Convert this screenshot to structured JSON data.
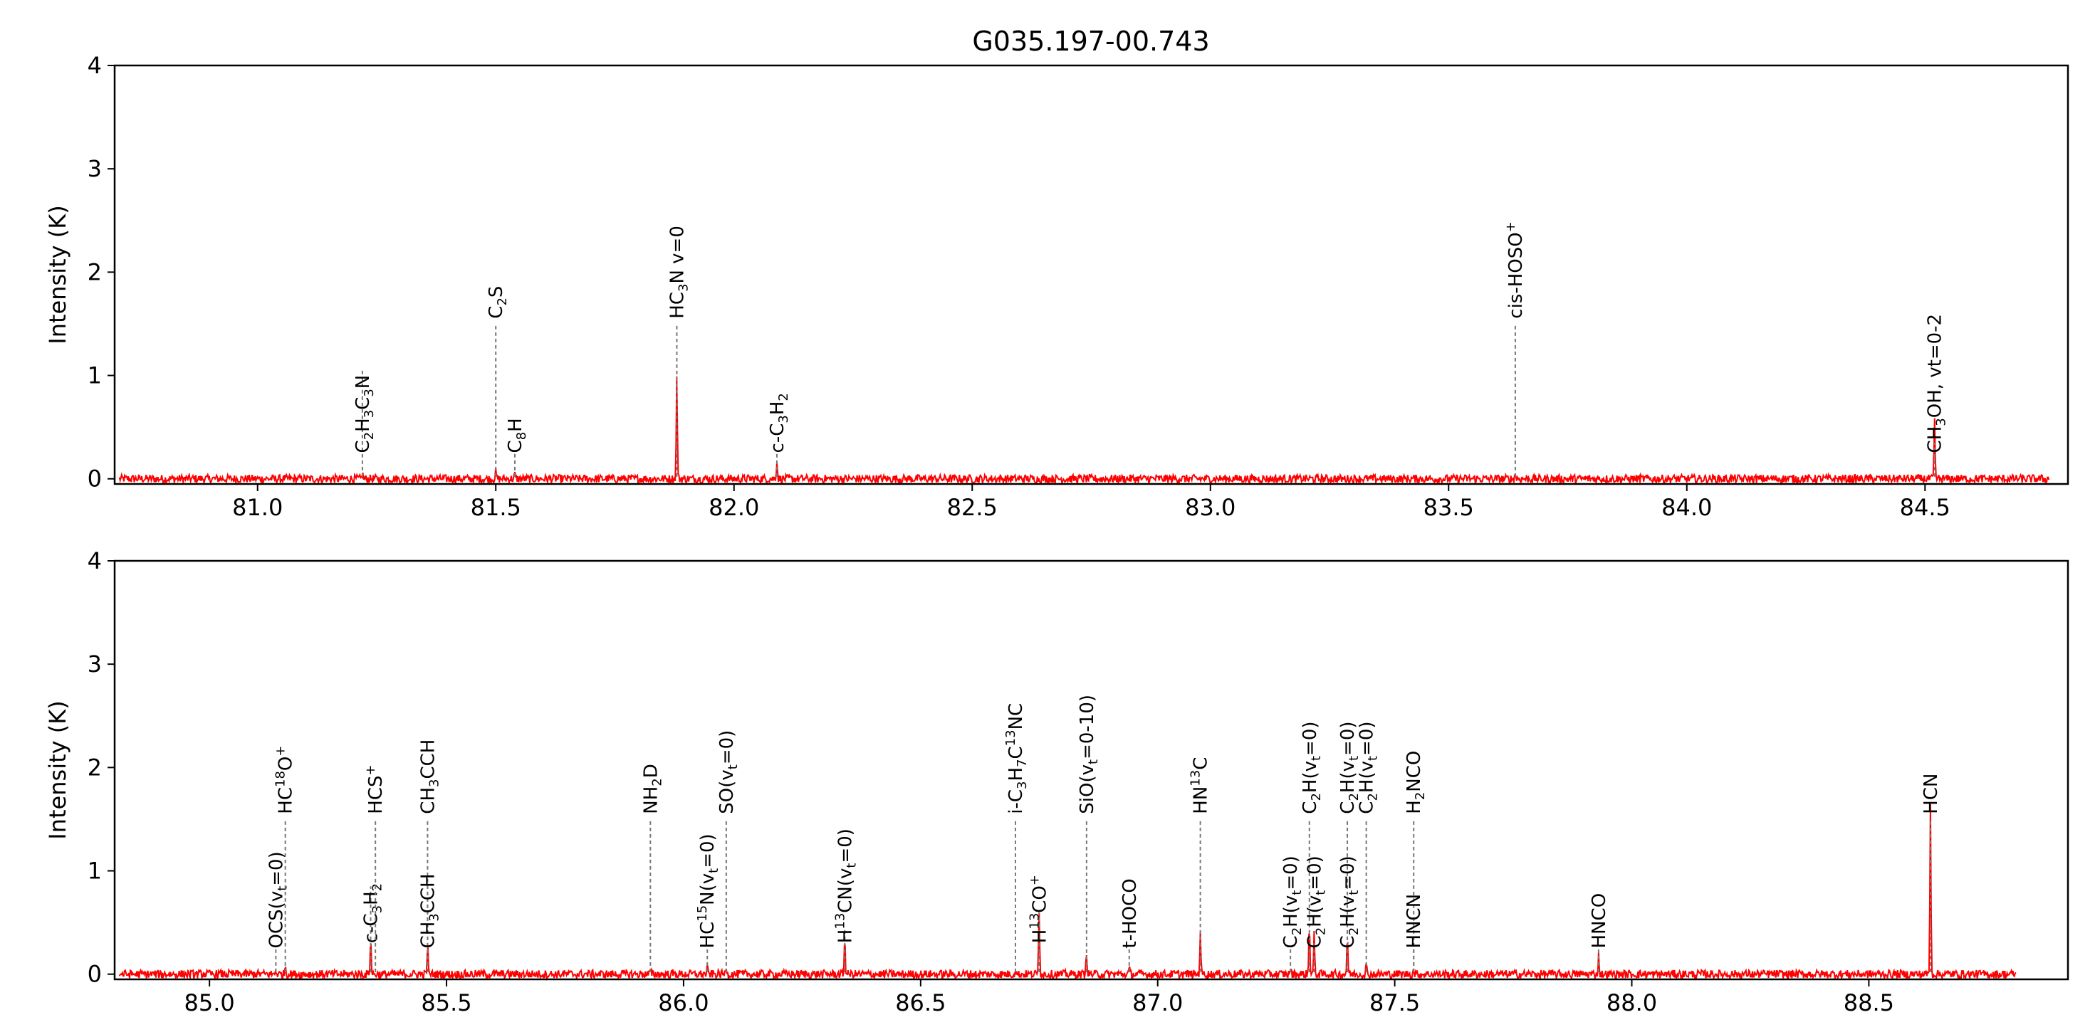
{
  "chart_data": {
    "type": "line",
    "title": "G035.197-00.743",
    "panels": [
      {
        "ylabel": "Intensity (K)",
        "xlim": [
          80.7,
          84.8
        ],
        "ylim": [
          -0.05,
          4
        ],
        "xticks": [
          "81.0",
          "81.5",
          "82.0",
          "82.5",
          "83.0",
          "83.5",
          "84.0",
          "84.5"
        ],
        "xtick_values": [
          81.0,
          81.5,
          82.0,
          82.5,
          83.0,
          83.5,
          84.0,
          84.5
        ],
        "yticks": [
          "0",
          "1",
          "2",
          "3",
          "4"
        ],
        "ytick_values": [
          0,
          1,
          2,
          3,
          4
        ],
        "spectrum_range": [
          80.71,
          84.76
        ],
        "peaks": [
          {
            "x": 81.22,
            "h": 0.05
          },
          {
            "x": 81.5,
            "h": 0.07
          },
          {
            "x": 81.54,
            "h": 0.04
          },
          {
            "x": 81.88,
            "h": 0.98
          },
          {
            "x": 82.09,
            "h": 0.18
          },
          {
            "x": 83.64,
            "h": 0.05
          },
          {
            "x": 84.52,
            "h": 0.55
          }
        ],
        "lines": [
          {
            "x": 81.22,
            "label": "C2H3C3N",
            "html": "C<tspan class='sub' dy='6'>2</tspan><tspan dy='-6'>H</tspan><tspan class='sub' dy='6'>3</tspan><tspan dy='-6'>C</tspan><tspan class='sub' dy='6'>3</tspan><tspan dy='-6'>N</tspan>",
            "top": 1.05,
            "text_y": 0.25
          },
          {
            "x": 81.5,
            "label": "C2S",
            "html": "C<tspan class='sub' dy='6'>2</tspan><tspan dy='-6'>S</tspan>",
            "top": 1.5,
            "text_y": 1.55
          },
          {
            "x": 81.54,
            "label": "C8H",
            "html": "C<tspan class='sub' dy='6'>8</tspan><tspan dy='-6'>H</tspan>",
            "top": 0.25,
            "text_y": 0.25
          },
          {
            "x": 81.88,
            "label": "HC3N v=0",
            "html": "HC<tspan class='sub' dy='6'>3</tspan><tspan dy='-6'>N v=0</tspan>",
            "top": 1.5,
            "text_y": 1.55
          },
          {
            "x": 82.09,
            "label": "c-C3H2",
            "html": "c-C<tspan class='sub' dy='6'>3</tspan><tspan dy='-6'>H</tspan><tspan class='sub' dy='6'>2</tspan>",
            "top": 0.25,
            "text_y": 0.25
          },
          {
            "x": 83.64,
            "label": "cis-HOSO+",
            "html": "cis-HOSO<tspan class='sup' dy='-10'>+</tspan>",
            "top": 1.5,
            "text_y": 1.55
          },
          {
            "x": 84.52,
            "label": "CH3OH, vt=0-2",
            "html": "CH<tspan class='sub' dy='6'>3</tspan><tspan dy='-6'>OH, vt=0-2</tspan>",
            "top": 0.35,
            "text_y": 0.25
          }
        ]
      },
      {
        "ylabel": "Intensity (K)",
        "xlim": [
          84.8,
          88.92
        ],
        "ylim": [
          -0.05,
          4
        ],
        "xticks": [
          "85.0",
          "85.5",
          "86.0",
          "86.5",
          "87.0",
          "87.5",
          "88.0",
          "88.5"
        ],
        "xtick_values": [
          85.0,
          85.5,
          86.0,
          86.5,
          87.0,
          87.5,
          88.0,
          88.5
        ],
        "yticks": [
          "0",
          "1",
          "2",
          "3",
          "4"
        ],
        "ytick_values": [
          0,
          1,
          2,
          3,
          4
        ],
        "spectrum_range": [
          84.81,
          88.81
        ],
        "peaks": [
          {
            "x": 85.14,
            "h": 0.04
          },
          {
            "x": 85.16,
            "h": 0.08
          },
          {
            "x": 85.34,
            "h": 0.35
          },
          {
            "x": 85.46,
            "h": 0.28
          },
          {
            "x": 85.93,
            "h": 0.03
          },
          {
            "x": 86.05,
            "h": 0.06
          },
          {
            "x": 86.09,
            "h": 0.08
          },
          {
            "x": 86.34,
            "h": 0.35
          },
          {
            "x": 86.7,
            "h": 0.04
          },
          {
            "x": 86.75,
            "h": 0.62
          },
          {
            "x": 86.85,
            "h": 0.22
          },
          {
            "x": 86.94,
            "h": 0.05
          },
          {
            "x": 87.09,
            "h": 0.42
          },
          {
            "x": 87.28,
            "h": 0.06
          },
          {
            "x": 87.32,
            "h": 0.5
          },
          {
            "x": 87.33,
            "h": 0.38
          },
          {
            "x": 87.4,
            "h": 0.38
          },
          {
            "x": 87.44,
            "h": 0.08
          },
          {
            "x": 87.54,
            "h": 0.04
          },
          {
            "x": 87.93,
            "h": 0.18
          },
          {
            "x": 88.63,
            "h": 1.62
          }
        ],
        "lines": [
          {
            "x": 85.14,
            "label": "OCS(vt=0)",
            "html": "OCS(v<tspan class='sub' dy='6'>t</tspan><tspan dy='-6'>=0)</tspan>",
            "top": 0.25,
            "text_y": 0.25
          },
          {
            "x": 85.16,
            "label": "HC18O+",
            "html": "HC<tspan class='sup' dy='-10'>18</tspan><tspan dy='10'>O</tspan><tspan class='sup' dy='-10'>+</tspan>",
            "top": 1.5,
            "text_y": 1.55
          },
          {
            "x": 85.34,
            "label": "c-C3H2",
            "html": "c-C<tspan class='sub' dy='6'>3</tspan><tspan dy='-6'>H</tspan><tspan class='sub' dy='6'>2</tspan>",
            "top": 0.85,
            "text_y": 0.3
          },
          {
            "x": 85.35,
            "label": "HCS+",
            "html": "HCS<tspan class='sup' dy='-10'>+</tspan>",
            "top": 1.5,
            "text_y": 1.55
          },
          {
            "x": 85.46,
            "label": "CH3CCH",
            "html": "CH<tspan class='sub' dy='6'>3</tspan><tspan dy='-6'>CCH</tspan>",
            "top": 1.5,
            "text_y": 1.55
          },
          {
            "x": 85.46,
            "label": "CH3CCH",
            "html": "CH<tspan class='sub' dy='6'>3</tspan><tspan dy='-6'>CCH</tspan>",
            "top": 0.85,
            "text_y": 0.25
          },
          {
            "x": 85.93,
            "label": "NH2D",
            "html": "NH<tspan class='sub' dy='6'>2</tspan><tspan dy='-6'>D</tspan>",
            "top": 1.5,
            "text_y": 1.55
          },
          {
            "x": 86.05,
            "label": "HC15N(vt=0)",
            "html": "HC<tspan class='sup' dy='-10'>15</tspan><tspan dy='10'>N(v</tspan><tspan class='sub' dy='6'>t</tspan><tspan dy='-6'>=0)</tspan>",
            "top": 0.25,
            "text_y": 0.25
          },
          {
            "x": 86.09,
            "label": "SO(vt=0)",
            "html": "SO(v<tspan class='sub' dy='6'>t</tspan><tspan dy='-6'>=0)</tspan>",
            "top": 1.5,
            "text_y": 1.55
          },
          {
            "x": 86.34,
            "label": "H13CN(vt=0)",
            "html": "H<tspan class='sup' dy='-10'>13</tspan><tspan dy='10'>CN(v</tspan><tspan class='sub' dy='6'>t</tspan><tspan dy='-6'>=0)</tspan>",
            "top": 0.45,
            "text_y": 0.3
          },
          {
            "x": 86.7,
            "label": "i-C3H7C13NC",
            "html": "i-C<tspan class='sub' dy='6'>3</tspan><tspan dy='-6'>H</tspan><tspan class='sub' dy='6'>7</tspan><tspan dy='-6'>C</tspan><tspan class='sup' dy='-10'>13</tspan><tspan dy='10'>NC</tspan>",
            "top": 1.5,
            "text_y": 1.55
          },
          {
            "x": 86.75,
            "label": "H13CO+",
            "html": "H<tspan class='sup' dy='-10'>13</tspan><tspan dy='10'>CO</tspan><tspan class='sup' dy='-10'>+</tspan>",
            "top": 0.6,
            "text_y": 0.3
          },
          {
            "x": 86.85,
            "label": "SiO(vt=0-10)",
            "html": "SiO(v<tspan class='sub' dy='6'>t</tspan><tspan dy='-6'>=0-10)</tspan>",
            "top": 1.5,
            "text_y": 1.55
          },
          {
            "x": 86.94,
            "label": "t-HOCO",
            "html": "t-HOCO",
            "top": 0.25,
            "text_y": 0.25
          },
          {
            "x": 87.09,
            "label": "HN13C",
            "html": "HN<tspan class='sup' dy='-10'>13</tspan><tspan dy='10'>C</tspan>",
            "top": 1.5,
            "text_y": 1.55
          },
          {
            "x": 87.28,
            "label": "C2H(vt=0)",
            "html": "C<tspan class='sub' dy='6'>2</tspan><tspan dy='-6'>H(v</tspan><tspan class='sub' dy='6'>t</tspan><tspan dy='-6'>=0)</tspan>",
            "top": 0.25,
            "text_y": 0.25
          },
          {
            "x": 87.32,
            "label": "C2H(vt=0)",
            "html": "C<tspan class='sub' dy='6'>2</tspan><tspan dy='-6'>H(v</tspan><tspan class='sub' dy='6'>t</tspan><tspan dy='-6'>=0)</tspan>",
            "top": 1.5,
            "text_y": 1.55
          },
          {
            "x": 87.33,
            "label": "C2H(vt=0)",
            "html": "C<tspan class='sub' dy='6'>2</tspan><tspan dy='-6'>H(v</tspan><tspan class='sub' dy='6'>t</tspan><tspan dy='-6'>=0)</tspan>",
            "top": 0.3,
            "text_y": 0.25
          },
          {
            "x": 87.4,
            "label": "C2H(vt=0)",
            "html": "C<tspan class='sub' dy='6'>2</tspan><tspan dy='-6'>H(v</tspan><tspan class='sub' dy='6'>t</tspan><tspan dy='-6'>=0)</tspan>",
            "top": 1.5,
            "text_y": 1.55
          },
          {
            "x": 87.4,
            "label": "C2H(vt=0)",
            "html": "C<tspan class='sub' dy='6'>2</tspan><tspan dy='-6'>H(v</tspan><tspan class='sub' dy='6'>t</tspan><tspan dy='-6'>=0)</tspan>",
            "top": 0.45,
            "text_y": 0.25
          },
          {
            "x": 87.44,
            "label": "C2H(vt=0)",
            "html": "C<tspan class='sub' dy='6'>2</tspan><tspan dy='-6'>H(v</tspan><tspan class='sub' dy='6'>t</tspan><tspan dy='-6'>=0)</tspan>",
            "top": 1.5,
            "text_y": 1.55
          },
          {
            "x": 87.54,
            "label": "H2NCO",
            "html": "H<tspan class='sub' dy='6'>2</tspan><tspan dy='-6'>NCO</tspan>",
            "top": 1.5,
            "text_y": 1.55
          },
          {
            "x": 87.54,
            "label": "HNCN",
            "html": "HNCN",
            "top": 0.25,
            "text_y": 0.25
          },
          {
            "x": 87.93,
            "label": "HNCO",
            "html": "HNCO",
            "top": 0.25,
            "text_y": 0.25
          },
          {
            "x": 88.63,
            "label": "HCN",
            "html": "HCN",
            "top": 1.5,
            "text_y": 1.55
          }
        ]
      }
    ]
  }
}
